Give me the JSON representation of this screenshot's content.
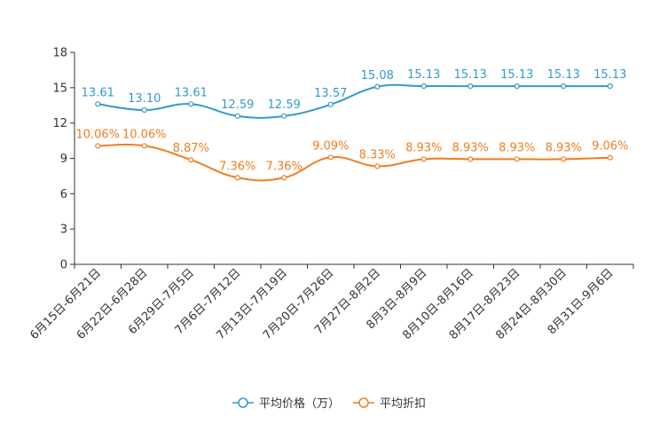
{
  "chart_data": {
    "type": "line",
    "categories": [
      "6月15日-6月21日",
      "6月22日-6月28日",
      "6月29日-7月5日",
      "7月6日-7月12日",
      "7月13日-7月19日",
      "7月20日-7月26日",
      "7月27日-8月2日",
      "8月3日-8月9日",
      "8月10日-8月16日",
      "8月17日-8月23日",
      "8月24日-8月30日",
      "8月31日-9月6日"
    ],
    "ylim": [
      0,
      18
    ],
    "yticks": [
      0,
      3,
      6,
      9,
      12,
      15,
      18
    ],
    "series": [
      {
        "name": "平均价格（万）",
        "color": "#3399cc",
        "values": [
          13.61,
          13.1,
          13.61,
          12.59,
          12.59,
          13.57,
          15.08,
          15.13,
          15.13,
          15.13,
          15.13,
          15.13
        ],
        "labels": [
          "13.61",
          "13.10",
          "13.61",
          "12.59",
          "12.59",
          "13.57",
          "15.08",
          "15.13",
          "15.13",
          "15.13",
          "15.13",
          "15.13"
        ]
      },
      {
        "name": "平均折扣",
        "color": "#f07d1e",
        "values": [
          10.06,
          10.06,
          8.87,
          7.36,
          7.36,
          9.09,
          8.33,
          8.93,
          8.93,
          8.93,
          8.93,
          9.06
        ],
        "labels": [
          "10.06%",
          "10.06%",
          "8.87%",
          "7.36%",
          "7.36%",
          "9.09%",
          "8.33%",
          "8.93%",
          "8.93%",
          "8.93%",
          "8.93%",
          "9.06%"
        ]
      }
    ],
    "legend": "bottom"
  }
}
